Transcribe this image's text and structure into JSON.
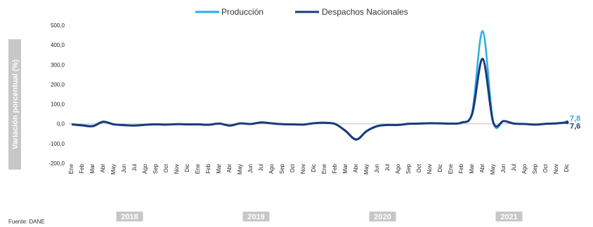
{
  "chart_data": {
    "type": "line",
    "title": "",
    "xlabel": "",
    "ylabel": "Variación porcentual (%)",
    "ylim": [
      -200,
      500
    ],
    "yticks": [
      "-200,0",
      "-100,0",
      "0,0",
      "100,0",
      "200,0",
      "300,0",
      "400,0",
      "500,0"
    ],
    "ytick_values": [
      -200,
      -100,
      0,
      100,
      200,
      300,
      400,
      500
    ],
    "months": [
      "Ene",
      "Feb",
      "Mar",
      "Abr",
      "May",
      "Jun",
      "Jul",
      "Ago",
      "Sep",
      "Oct",
      "Nov",
      "Dic"
    ],
    "years": [
      "2018",
      "2019",
      "2020",
      "2021"
    ],
    "legend_position": "top-center",
    "grid": false,
    "series": [
      {
        "name": "Producción",
        "color": "#29aee6",
        "end_label": "7,8",
        "values": [
          -2,
          -6,
          -10,
          12,
          -2,
          -6,
          -8,
          -4,
          -2,
          -3,
          -1,
          -2,
          -2,
          -4,
          2,
          -8,
          3,
          0,
          8,
          3,
          -1,
          -2,
          -3,
          4,
          6,
          0,
          -35,
          -78,
          -35,
          -10,
          -5,
          -5,
          1,
          2,
          4,
          3,
          2,
          8,
          60,
          470,
          10,
          15,
          2,
          0,
          -3,
          1,
          3,
          7.8
        ]
      },
      {
        "name": "Despachos Nacionales",
        "color": "#1b3a7a",
        "end_label": "7,6",
        "values": [
          -3,
          -8,
          -12,
          10,
          -3,
          -7,
          -9,
          -5,
          -3,
          -4,
          -2,
          -3,
          -3,
          -5,
          1,
          -9,
          2,
          -1,
          7,
          2,
          -2,
          -3,
          -4,
          3,
          5,
          -1,
          -37,
          -80,
          -37,
          -12,
          -6,
          -6,
          0,
          1,
          3,
          2,
          1,
          6,
          50,
          330,
          8,
          14,
          1,
          -1,
          -4,
          0,
          2,
          7.6
        ]
      }
    ]
  },
  "footer": {
    "source": "Fuente: DANE"
  }
}
